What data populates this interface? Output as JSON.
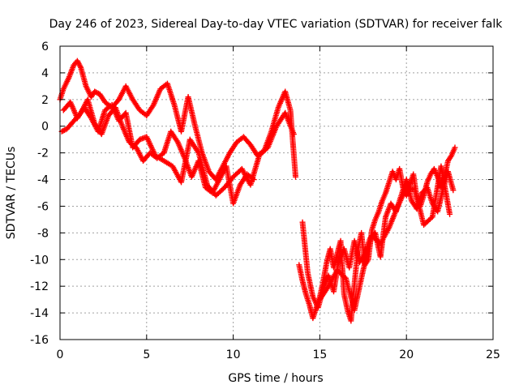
{
  "chart_data": {
    "type": "scatter",
    "title": "Day 246 of 2023, Sidereal Day-to-day VTEC variation (SDTVAR) for receiver falk",
    "xlabel": "GPS time / hours",
    "ylabel": "SDTVAR / TECUs",
    "xlim": [
      0,
      25
    ],
    "ylim": [
      -16,
      6
    ],
    "xticks": [
      "0",
      "5",
      "10",
      "15",
      "20",
      "25"
    ],
    "yticks": [
      "6",
      "4",
      "2",
      "0",
      "-2",
      "-4",
      "-6",
      "-8",
      "-10",
      "-12",
      "-14",
      "-16"
    ],
    "grid": true,
    "marker": "plus",
    "color": "#ff0000",
    "series": [
      {
        "x": [
          0.0,
          0.2,
          0.5,
          0.8,
          1.0,
          1.2,
          1.5,
          1.8,
          2.0,
          2.3,
          2.6,
          3.0,
          3.4,
          3.8,
          4.2,
          4.6,
          5.0,
          5.4,
          5.8,
          6.2,
          6.6,
          7.0,
          7.4,
          7.8,
          8.2,
          8.6,
          9.0,
          9.4,
          9.8,
          10.2,
          10.6,
          11.0,
          11.4,
          11.8,
          12.2,
          12.6,
          13.0,
          13.3,
          13.6
        ],
        "y": [
          2.0,
          2.8,
          3.6,
          4.6,
          4.9,
          4.4,
          3.0,
          2.2,
          2.6,
          2.4,
          1.8,
          1.4,
          2.0,
          3.0,
          2.0,
          1.2,
          0.8,
          1.6,
          2.8,
          3.2,
          1.6,
          -0.4,
          2.2,
          0.0,
          -2.0,
          -3.4,
          -4.0,
          -3.0,
          -2.0,
          -1.2,
          -0.8,
          -1.4,
          -2.2,
          -1.8,
          -0.4,
          1.4,
          2.6,
          1.2,
          -3.8
        ]
      },
      {
        "x": [
          0.2,
          0.6,
          1.0,
          1.4,
          1.8,
          2.2,
          2.6,
          3.0,
          3.4,
          3.8,
          4.2,
          4.6,
          5.0,
          5.5,
          6.0,
          6.5,
          7.0,
          7.5,
          8.0,
          8.5,
          9.0,
          9.5,
          10.0,
          10.5,
          11.0,
          11.5,
          12.0,
          12.5,
          13.0,
          13.5
        ],
        "y": [
          1.2,
          1.8,
          0.6,
          1.4,
          0.6,
          -0.4,
          1.2,
          1.6,
          0.4,
          1.0,
          -1.6,
          -1.0,
          -0.8,
          -2.2,
          -2.6,
          -3.0,
          -4.2,
          -1.0,
          -2.0,
          -4.4,
          -5.2,
          -4.6,
          -3.8,
          -3.2,
          -4.4,
          -2.2,
          -1.6,
          0.0,
          1.0,
          -0.6
        ]
      },
      {
        "x": [
          0.1,
          0.4,
          0.8,
          1.2,
          1.6,
          2.0,
          2.4,
          2.8,
          3.2,
          3.6,
          4.0,
          4.4,
          4.8,
          5.2,
          5.6,
          6.0,
          6.4,
          6.8,
          7.2,
          7.6,
          8.0,
          8.4,
          8.8,
          9.2,
          9.6,
          10.0,
          10.4,
          10.8,
          11.2
        ],
        "y": [
          -0.4,
          -0.2,
          0.4,
          1.0,
          2.0,
          0.2,
          -0.6,
          0.8,
          1.4,
          0.0,
          -1.2,
          -1.6,
          -2.6,
          -2.0,
          -2.4,
          -2.0,
          -0.4,
          -1.2,
          -2.4,
          -3.8,
          -2.6,
          -4.6,
          -5.0,
          -4.0,
          -3.0,
          -5.8,
          -4.4,
          -3.6,
          -4.0
        ]
      },
      {
        "x": [
          13.8,
          14.0,
          14.2,
          14.4,
          14.6,
          14.8,
          15.0,
          15.2,
          15.4,
          15.6,
          15.8,
          16.0,
          16.2,
          16.4,
          16.6,
          16.8,
          17.0,
          17.2,
          17.4,
          17.6,
          17.8,
          18.0,
          18.2,
          18.4,
          18.6,
          18.8,
          19.0,
          19.2,
          19.4,
          19.6,
          19.8,
          20.0,
          20.2,
          20.4,
          20.6,
          20.8,
          21.0,
          21.2,
          21.4,
          21.6,
          21.8,
          22.0,
          22.2,
          22.4,
          22.6,
          22.8
        ],
        "y": [
          -10.4,
          -11.6,
          -12.6,
          -13.4,
          -14.4,
          -13.6,
          -12.8,
          -11.6,
          -10.2,
          -9.2,
          -10.6,
          -9.6,
          -8.6,
          -12.6,
          -13.8,
          -14.6,
          -11.8,
          -9.2,
          -8.0,
          -10.4,
          -10.0,
          -7.8,
          -7.0,
          -6.4,
          -5.6,
          -5.0,
          -4.2,
          -3.4,
          -4.0,
          -3.2,
          -4.6,
          -5.2,
          -4.4,
          -3.6,
          -5.4,
          -6.0,
          -5.2,
          -4.2,
          -3.6,
          -3.2,
          -3.8,
          -4.6,
          -3.8,
          -2.6,
          -2.2,
          -1.6
        ]
      },
      {
        "x": [
          14.0,
          14.3,
          14.6,
          14.9,
          15.2,
          15.5,
          15.8,
          16.1,
          16.4,
          16.7,
          17.0,
          17.3,
          17.6,
          17.9,
          18.2,
          18.5,
          18.8,
          19.1,
          19.4,
          19.7,
          20.0,
          20.3,
          20.6,
          20.9,
          21.2,
          21.5,
          21.8,
          22.1,
          22.4,
          22.7
        ],
        "y": [
          -7.2,
          -11.0,
          -12.8,
          -13.6,
          -12.2,
          -11.2,
          -12.4,
          -10.0,
          -9.2,
          -10.6,
          -8.6,
          -10.2,
          -9.6,
          -8.4,
          -8.0,
          -9.8,
          -6.8,
          -5.8,
          -6.4,
          -5.2,
          -4.0,
          -5.6,
          -6.2,
          -5.0,
          -4.6,
          -5.8,
          -6.4,
          -4.8,
          -3.4,
          -4.8
        ]
      },
      {
        "x": [
          15.0,
          15.5,
          16.0,
          16.5,
          17.0,
          17.5,
          18.0,
          18.5,
          19.0,
          19.5,
          20.0,
          20.5,
          21.0,
          21.5,
          22.0,
          22.5
        ],
        "y": [
          -13.0,
          -12.0,
          -10.8,
          -11.4,
          -13.8,
          -10.8,
          -8.2,
          -8.8,
          -7.6,
          -6.0,
          -4.6,
          -4.8,
          -7.4,
          -6.8,
          -3.0,
          -6.6
        ]
      }
    ]
  }
}
